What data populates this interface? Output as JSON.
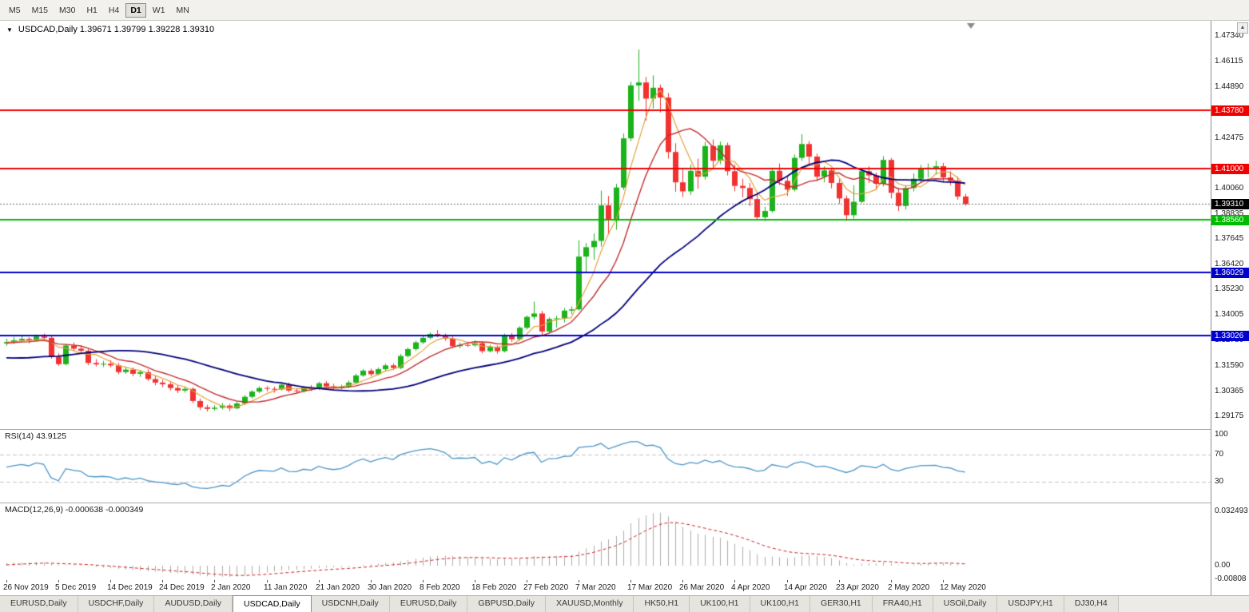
{
  "toolbar": {
    "timeframes": [
      "M5",
      "M15",
      "M30",
      "H1",
      "H4",
      "D1",
      "W1",
      "MN"
    ],
    "active": "D1"
  },
  "chart": {
    "title_line": "USDCAD,Daily 1.39671 1.39799 1.39228 1.39310",
    "dropdown_glyph": "▼",
    "scroll_up_glyph": "▲"
  },
  "chart_data": {
    "type": "candlestick",
    "symbol": "USDCAD",
    "timeframe": "Daily",
    "ohlc_current": {
      "open": 1.39671,
      "high": 1.39799,
      "low": 1.39228,
      "close": 1.3931
    },
    "view": {
      "price_min": 1.2856,
      "price_max": 1.4807
    },
    "price_ticks": [
      "1.47340",
      "1.46115",
      "1.44890",
      "1.42475",
      "1.40060",
      "1.38835",
      "1.37645",
      "1.36420",
      "1.35230",
      "1.34005",
      "1.32780",
      "1.31590",
      "1.30365",
      "1.29175"
    ],
    "hlines": [
      {
        "price": 1.4378,
        "label": "1.43780",
        "color": "#F00000"
      },
      {
        "price": 1.41,
        "label": "1.41000",
        "color": "#F00000"
      },
      {
        "price": 1.3856,
        "label": "1.38560",
        "color": "#00BB00"
      },
      {
        "price": 1.36029,
        "label": "1.36029",
        "color": "#0000CC"
      },
      {
        "price": 1.33026,
        "label": "1.33026",
        "color": "#0000CC"
      }
    ],
    "current_price": {
      "value": 1.3931,
      "label": "1.39310",
      "badge_color": "#000000"
    },
    "time_labels": [
      "26 Nov 2019",
      "5 Dec 2019",
      "14 Dec 2019",
      "24 Dec 2019",
      "2 Jan 2020",
      "11 Jan 2020",
      "21 Jan 2020",
      "30 Jan 2020",
      "8 Feb 2020",
      "18 Feb 2020",
      "27 Feb 2020",
      "7 Mar 2020",
      "17 Mar 2020",
      "26 Mar 2020",
      "4 Apr 2020",
      "14 Apr 2020",
      "23 Apr 2020",
      "2 May 2020",
      "12 May 2020"
    ],
    "candles_per_time_label": 7,
    "candle_colors": {
      "up": "#1CB21C",
      "down": "#F23131"
    },
    "moving_averages": [
      {
        "period": 5,
        "color": "#E0A23E",
        "width": 1.2
      },
      {
        "period": 10,
        "color": "#C22F2F",
        "width": 1.4
      },
      {
        "period": 30,
        "color": "#00007B",
        "width": 1.8
      }
    ],
    "rsi": {
      "label": "RSI(14) 43.9125",
      "period": 14,
      "value": 43.9125,
      "levels": [
        "100",
        "70",
        "30"
      ],
      "color": "#4A94C6"
    },
    "macd": {
      "label": "MACD(12,26,9) -0.000638 -0.000349",
      "fast": 12,
      "slow": 26,
      "signal_period": 9,
      "macd_value": -0.000638,
      "signal_value": -0.000349,
      "axis_ticks": [
        {
          "v": 0.032493,
          "label": "0.032493"
        },
        {
          "v": 0,
          "label": "0.00"
        },
        {
          "v": -0.00808,
          "label": "-0.00808"
        }
      ],
      "histogram_color": "#ACACAC",
      "signal_color": "#CC2020"
    },
    "seed_closes": [
      1.333,
      1.3305,
      1.328,
      1.3252,
      1.3225,
      1.3198,
      1.3172,
      1.3148,
      1.3125,
      1.3105,
      1.3088,
      1.3075,
      1.3068,
      1.3072,
      1.3085,
      1.3105,
      1.313,
      1.3158,
      1.3185,
      1.321,
      1.324,
      1.3255,
      1.3262,
      1.327,
      1.3258,
      1.3265,
      1.3272,
      1.3268,
      1.3275,
      1.327
    ],
    "candles": [
      [
        1.3265,
        1.3288,
        1.3254,
        1.3272
      ],
      [
        1.3272,
        1.3296,
        1.3262,
        1.328
      ],
      [
        1.328,
        1.3301,
        1.3271,
        1.3287
      ],
      [
        1.3287,
        1.3295,
        1.3266,
        1.3281
      ],
      [
        1.3281,
        1.3308,
        1.3274,
        1.3298
      ],
      [
        1.3298,
        1.3312,
        1.328,
        1.3292
      ],
      [
        1.3292,
        1.3299,
        1.3192,
        1.3201
      ],
      [
        1.3201,
        1.3218,
        1.3158,
        1.3166
      ],
      [
        1.3166,
        1.3262,
        1.316,
        1.3255
      ],
      [
        1.3255,
        1.327,
        1.3228,
        1.324
      ],
      [
        1.324,
        1.3255,
        1.3218,
        1.323
      ],
      [
        1.323,
        1.324,
        1.3162,
        1.3172
      ],
      [
        1.3172,
        1.319,
        1.3155,
        1.3165
      ],
      [
        1.3165,
        1.3182,
        1.3152,
        1.3168
      ],
      [
        1.3168,
        1.3184,
        1.315,
        1.316
      ],
      [
        1.316,
        1.3172,
        1.3118,
        1.3128
      ],
      [
        1.3128,
        1.3152,
        1.312,
        1.314
      ],
      [
        1.314,
        1.315,
        1.3108,
        1.312
      ],
      [
        1.312,
        1.3138,
        1.3105,
        1.3128
      ],
      [
        1.3128,
        1.3141,
        1.3086,
        1.3095
      ],
      [
        1.3095,
        1.311,
        1.3065,
        1.3078
      ],
      [
        1.3078,
        1.3092,
        1.3056,
        1.307
      ],
      [
        1.307,
        1.308,
        1.304,
        1.3052
      ],
      [
        1.3052,
        1.3066,
        1.3028,
        1.304
      ],
      [
        1.304,
        1.306,
        1.303,
        1.3048
      ],
      [
        1.3048,
        1.3055,
        1.298,
        1.299
      ],
      [
        1.299,
        1.3002,
        1.2948,
        1.296
      ],
      [
        1.296,
        1.2972,
        1.294,
        1.2952
      ],
      [
        1.2952,
        1.297,
        1.2944,
        1.2958
      ],
      [
        1.2958,
        1.298,
        1.295,
        1.2968
      ],
      [
        1.2968,
        1.2976,
        1.2942,
        1.2955
      ],
      [
        1.2955,
        1.299,
        1.295,
        1.2978
      ],
      [
        1.2978,
        1.3018,
        1.2972,
        1.301
      ],
      [
        1.301,
        1.3042,
        1.3002,
        1.3035
      ],
      [
        1.3035,
        1.306,
        1.3028,
        1.3052
      ],
      [
        1.3052,
        1.3062,
        1.3036,
        1.3048
      ],
      [
        1.3048,
        1.3058,
        1.303,
        1.3045
      ],
      [
        1.3045,
        1.3075,
        1.304,
        1.3068
      ],
      [
        1.3068,
        1.3078,
        1.3032,
        1.304
      ],
      [
        1.304,
        1.3052,
        1.3028,
        1.3038
      ],
      [
        1.3038,
        1.3062,
        1.303,
        1.3055
      ],
      [
        1.3055,
        1.3066,
        1.3038,
        1.3047
      ],
      [
        1.3047,
        1.3082,
        1.3042,
        1.3075
      ],
      [
        1.3075,
        1.3085,
        1.3052,
        1.306
      ],
      [
        1.306,
        1.3072,
        1.3044,
        1.3052
      ],
      [
        1.3052,
        1.3068,
        1.3045,
        1.3058
      ],
      [
        1.3058,
        1.3088,
        1.3052,
        1.3078
      ],
      [
        1.3078,
        1.312,
        1.3072,
        1.3112
      ],
      [
        1.3112,
        1.3142,
        1.3105,
        1.3135
      ],
      [
        1.3135,
        1.3145,
        1.3108,
        1.3118
      ],
      [
        1.3118,
        1.315,
        1.3112,
        1.3142
      ],
      [
        1.3142,
        1.3168,
        1.3135,
        1.316
      ],
      [
        1.316,
        1.317,
        1.3138,
        1.3148
      ],
      [
        1.3148,
        1.3215,
        1.3142,
        1.3205
      ],
      [
        1.3205,
        1.3245,
        1.3198,
        1.3238
      ],
      [
        1.3238,
        1.3278,
        1.323,
        1.327
      ],
      [
        1.327,
        1.33,
        1.3262,
        1.3292
      ],
      [
        1.3292,
        1.3318,
        1.3285,
        1.331
      ],
      [
        1.331,
        1.3329,
        1.3295,
        1.3302
      ],
      [
        1.3302,
        1.3312,
        1.3278,
        1.3288
      ],
      [
        1.3288,
        1.3298,
        1.3245,
        1.3252
      ],
      [
        1.3252,
        1.327,
        1.3242,
        1.3258
      ],
      [
        1.3258,
        1.3272,
        1.3248,
        1.3256
      ],
      [
        1.3256,
        1.328,
        1.325,
        1.3266
      ],
      [
        1.3266,
        1.3275,
        1.3218,
        1.3228
      ],
      [
        1.3228,
        1.3258,
        1.3222,
        1.3248
      ],
      [
        1.3248,
        1.3256,
        1.3216,
        1.3228
      ],
      [
        1.3228,
        1.3312,
        1.3222,
        1.3302
      ],
      [
        1.3302,
        1.3315,
        1.3272,
        1.3285
      ],
      [
        1.3285,
        1.3348,
        1.3278,
        1.334
      ],
      [
        1.334,
        1.3398,
        1.3332,
        1.3392
      ],
      [
        1.3392,
        1.3465,
        1.338,
        1.3408
      ],
      [
        1.3408,
        1.342,
        1.3305,
        1.3322
      ],
      [
        1.3322,
        1.339,
        1.3312,
        1.3382
      ],
      [
        1.3382,
        1.3398,
        1.334,
        1.3385
      ],
      [
        1.3385,
        1.3435,
        1.3365,
        1.3422
      ],
      [
        1.3422,
        1.3442,
        1.3405,
        1.3428
      ],
      [
        1.3428,
        1.3758,
        1.3422,
        1.368
      ],
      [
        1.368,
        1.3745,
        1.3602,
        1.3725
      ],
      [
        1.3725,
        1.379,
        1.3665,
        1.3755
      ],
      [
        1.3755,
        1.3995,
        1.3728,
        1.3925
      ],
      [
        1.3925,
        1.397,
        1.3785,
        1.3855
      ],
      [
        1.3855,
        1.4028,
        1.3808,
        1.401
      ],
      [
        1.401,
        1.4268,
        1.3998,
        1.4245
      ],
      [
        1.4245,
        1.4515,
        1.4232,
        1.4498
      ],
      [
        1.4498,
        1.4669,
        1.4425,
        1.4512
      ],
      [
        1.4512,
        1.4538,
        1.433,
        1.4435
      ],
      [
        1.4435,
        1.4546,
        1.4388,
        1.4487
      ],
      [
        1.4487,
        1.4502,
        1.4369,
        1.444
      ],
      [
        1.444,
        1.4462,
        1.4148,
        1.418
      ],
      [
        1.418,
        1.4222,
        1.399,
        1.4035
      ],
      [
        1.4035,
        1.4105,
        1.3965,
        1.3992
      ],
      [
        1.3992,
        1.412,
        1.3975,
        1.409
      ],
      [
        1.409,
        1.4148,
        1.4005,
        1.4062
      ],
      [
        1.4062,
        1.4228,
        1.4048,
        1.4208
      ],
      [
        1.4208,
        1.424,
        1.4105,
        1.4138
      ],
      [
        1.4138,
        1.423,
        1.4122,
        1.4212
      ],
      [
        1.4212,
        1.4225,
        1.4068,
        1.4088
      ],
      [
        1.4088,
        1.412,
        1.3992,
        1.4018
      ],
      [
        1.4018,
        1.4052,
        1.3962,
        1.4008
      ],
      [
        1.4008,
        1.4032,
        1.3922,
        1.3955
      ],
      [
        1.3955,
        1.3985,
        1.3855,
        1.3868
      ],
      [
        1.3868,
        1.3918,
        1.385,
        1.3898
      ],
      [
        1.3898,
        1.4105,
        1.389,
        1.409
      ],
      [
        1.409,
        1.4125,
        1.4022,
        1.4042
      ],
      [
        1.4042,
        1.4065,
        1.397,
        1.4
      ],
      [
        1.4,
        1.4168,
        1.3992,
        1.4152
      ],
      [
        1.4152,
        1.4265,
        1.4138,
        1.4218
      ],
      [
        1.4218,
        1.4232,
        1.4122,
        1.4158
      ],
      [
        1.4158,
        1.4172,
        1.4042,
        1.4062
      ],
      [
        1.4062,
        1.4112,
        1.4035,
        1.4092
      ],
      [
        1.4092,
        1.4102,
        1.4006,
        1.4032
      ],
      [
        1.4032,
        1.4052,
        1.3932,
        1.3958
      ],
      [
        1.3958,
        1.3972,
        1.385,
        1.3878
      ],
      [
        1.3878,
        1.402,
        1.3862,
        1.3942
      ],
      [
        1.3942,
        1.4102,
        1.3935,
        1.4088
      ],
      [
        1.4088,
        1.4112,
        1.4032,
        1.4068
      ],
      [
        1.4068,
        1.4082,
        1.3998,
        1.4028
      ],
      [
        1.4028,
        1.416,
        1.4015,
        1.4142
      ],
      [
        1.4142,
        1.4152,
        1.3958,
        1.3985
      ],
      [
        1.3985,
        1.4008,
        1.3898,
        1.3922
      ],
      [
        1.3922,
        1.4022,
        1.3905,
        1.4008
      ],
      [
        1.4008,
        1.4078,
        1.3992,
        1.4052
      ],
      [
        1.4052,
        1.4118,
        1.4035,
        1.4098
      ],
      [
        1.4098,
        1.4125,
        1.4058,
        1.4105
      ],
      [
        1.4105,
        1.4138,
        1.4072,
        1.4112
      ],
      [
        1.4112,
        1.4128,
        1.4035,
        1.4058
      ],
      [
        1.4058,
        1.4088,
        1.4022,
        1.4042
      ],
      [
        1.4042,
        1.4062,
        1.3952,
        1.3967
      ],
      [
        1.39671,
        1.39799,
        1.39228,
        1.3931
      ]
    ]
  },
  "tabs": {
    "items": [
      "EURUSD,Daily",
      "USDCHF,Daily",
      "AUDUSD,Daily",
      "USDCAD,Daily",
      "USDCNH,Daily",
      "EURUSD,Daily",
      "GBPUSD,Daily",
      "XAUUSD,Monthly",
      "HK50,H1",
      "UK100,H1",
      "UK100,H1",
      "GER30,H1",
      "FRA40,H1",
      "USOil,Daily",
      "USDJPY,H1",
      "DJ30,H4"
    ],
    "active_index": 3
  }
}
